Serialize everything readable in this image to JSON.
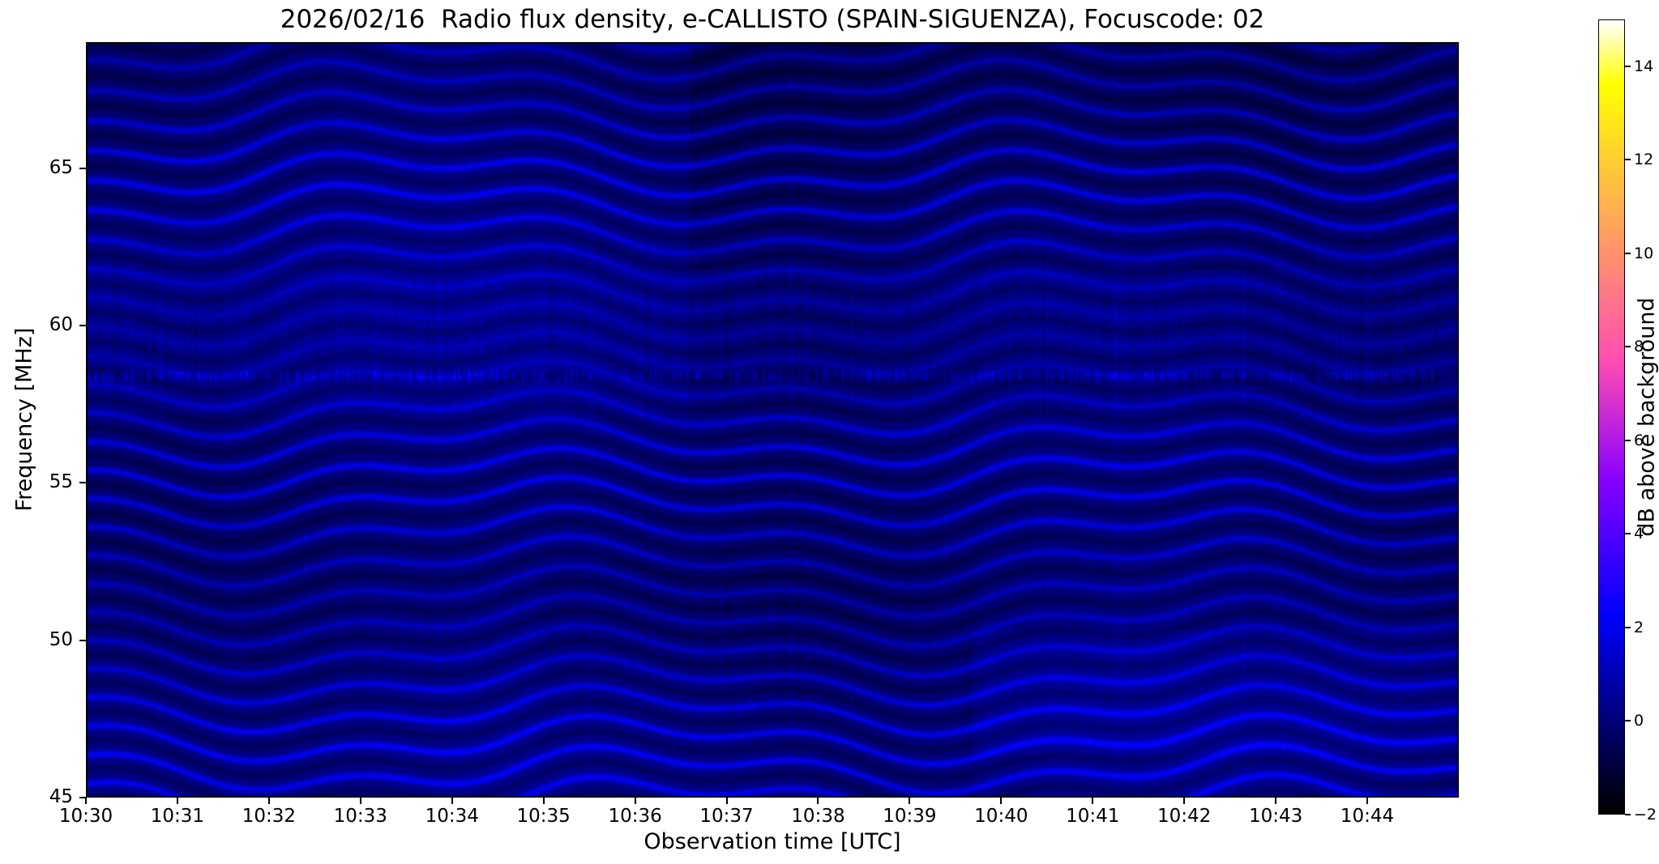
{
  "chart_data": {
    "type": "heatmap",
    "title": "2026/02/16  Radio flux density, e-CALLISTO (SPAIN-SIGUENZA), Focuscode: 02",
    "xlabel": "Observation time [UTC]",
    "ylabel": "Frequency [MHz]",
    "x_tick_labels": [
      "10:30",
      "10:31",
      "10:32",
      "10:33",
      "10:34",
      "10:35",
      "10:36",
      "10:37",
      "10:38",
      "10:39",
      "10:40",
      "10:41",
      "10:42",
      "10:43",
      "10:44"
    ],
    "x_range": {
      "start_minutes": 0,
      "end_minutes": 15
    },
    "y_ticks_mhz": [
      65,
      60,
      55,
      50,
      45
    ],
    "y_tick_labels": [
      "65",
      "60",
      "55",
      "50",
      "45"
    ],
    "y_range_mhz": [
      45,
      69
    ],
    "colorbar": {
      "label": "dB above background",
      "ticks": [
        14,
        12,
        10,
        8,
        6,
        4,
        2,
        0,
        -2
      ],
      "tick_labels": [
        "14",
        "12",
        "10",
        "8",
        "6",
        "4",
        "2",
        "0",
        "−2"
      ],
      "value_range": [
        -2,
        15
      ],
      "colormap": "gnuplot2"
    },
    "content_summary": {
      "description": "Quiet dynamic radio spectrum: wavy horizontal blue interference fringes (~1 MHz spacing) on near-black background, mostly -1 to 3 dB; noisier speckled region near 57-62 MHz with a bright dashed line near 58.4 MHz; faint rectangular background-subtraction blocks (darker above ~62 MHz after 10:36, brighter 46-50 MHz after 10:40)",
      "band_spacing_mhz": 0.95,
      "typical_value_db_range": [
        -1,
        3
      ]
    }
  }
}
